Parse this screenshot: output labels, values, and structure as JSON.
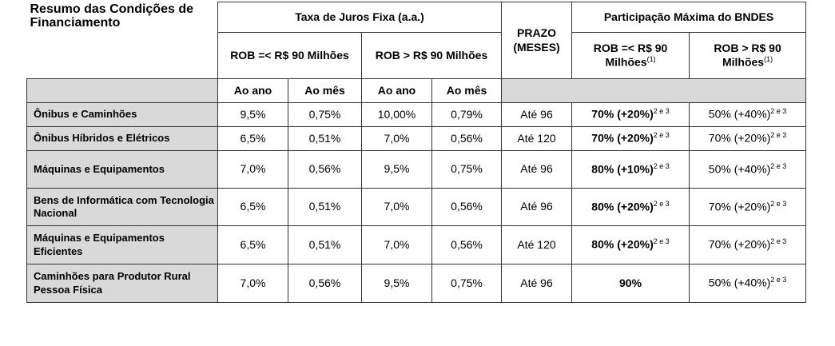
{
  "title": "Resumo das Condições de Financiamento",
  "header": {
    "taxa": "Taxa de Juros Fixa (a.a.)",
    "prazo": "PRAZO (MESES)",
    "participacao": "Participação Máxima do BNDES",
    "groups": [
      "ROB =< R$ 90 Milhões",
      "ROB > R$ 90 Milhões",
      "ROB =< R$ 90 Milhões",
      "ROB > R$ 90 Milhões"
    ],
    "group_notes": [
      "(1)",
      "(1)"
    ],
    "subcols": [
      "Ao ano",
      "Ao mês",
      "Ao ano",
      "Ao mês"
    ]
  },
  "rows": [
    {
      "label": "Ônibus e Caminhões",
      "rates": [
        "9,5%",
        "0,75%",
        "10,00%",
        "0,79%"
      ],
      "prazo": "Até 96",
      "part": [
        {
          "text": "70% (+20%)",
          "note": "2 e 3"
        },
        {
          "text": "50% (+40%)",
          "note": "2 e 3"
        }
      ]
    },
    {
      "label": "Ônibus Híbridos e Elétricos",
      "rates": [
        "6,5%",
        "0,51%",
        "7,0%",
        "0,56%"
      ],
      "prazo": "Até 120",
      "part": [
        {
          "text": "70% (+20%)",
          "note": "2 e 3"
        },
        {
          "text": "70% (+20%)",
          "note": "2 e 3"
        }
      ]
    },
    {
      "label": "Máquinas e Equipamentos",
      "rates": [
        "7,0%",
        "0,56%",
        "9,5%",
        "0,75%"
      ],
      "prazo": "Até 96",
      "part": [
        {
          "text": "80% (+10%)",
          "note": "2 e 3"
        },
        {
          "text": "50% (+40%)",
          "note": "2 e 3"
        }
      ]
    },
    {
      "label": "Bens de Informática com Tecnologia Nacional",
      "rates": [
        "6,5%",
        "0,51%",
        "7,0%",
        "0,56%"
      ],
      "prazo": "Até 96",
      "part": [
        {
          "text": "80% (+20%)",
          "note": "2 e 3"
        },
        {
          "text": "70% (+20%)",
          "note": "2 e 3"
        }
      ]
    },
    {
      "label": "Máquinas e Equipamentos Eficientes",
      "rates": [
        "6,5%",
        "0,51%",
        "7,0%",
        "0,56%"
      ],
      "prazo": "Até 120",
      "part": [
        {
          "text": "80% (+20%)",
          "note": "2 e 3"
        },
        {
          "text": "70% (+20%)",
          "note": "2 e 3"
        }
      ]
    },
    {
      "label": "Caminhões para Produtor Rural Pessoa Física",
      "rates": [
        "7,0%",
        "0,56%",
        "9,5%",
        "0,75%"
      ],
      "prazo": "Até 96",
      "part": [
        {
          "text": "90%"
        },
        {
          "text": "50% (+40%)",
          "note": "2 e 3"
        }
      ]
    }
  ]
}
